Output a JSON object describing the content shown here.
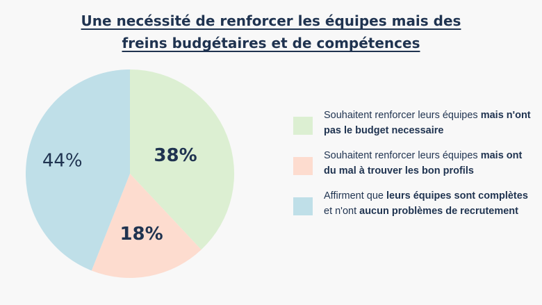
{
  "title": {
    "line1": "Une necéssité de renforcer les équipes mais des",
    "line2": "freins budgétaires et de compétences "
  },
  "chart_data": {
    "type": "pie",
    "slices": [
      {
        "label": "38%",
        "value": 38,
        "color": "#dcefd2"
      },
      {
        "label": "18%",
        "value": 18,
        "color": "#fddccf"
      },
      {
        "label": "44%",
        "value": 44,
        "color": "#bfdfe8"
      }
    ]
  },
  "legend": [
    {
      "color": "#dcefd2",
      "parts": [
        {
          "text": "Souhaitent renforcer leurs équipes ",
          "bold": false
        },
        {
          "text": "mais n'ont pas le budget necessaire",
          "bold": true
        }
      ]
    },
    {
      "color": "#fddccf",
      "parts": [
        {
          "text": "Souhaitent renforcer leurs équipes ",
          "bold": false
        },
        {
          "text": "mais ont du mal à trouver les bon profils",
          "bold": true
        }
      ]
    },
    {
      "color": "#bfdfe8",
      "parts": [
        {
          "text": "Affirment que ",
          "bold": false
        },
        {
          "text": "leurs équipes sont complètes",
          "bold": true
        },
        {
          "text": " et n'ont ",
          "bold": false
        },
        {
          "text": "aucun problèmes de recrutement",
          "bold": true
        }
      ]
    }
  ]
}
